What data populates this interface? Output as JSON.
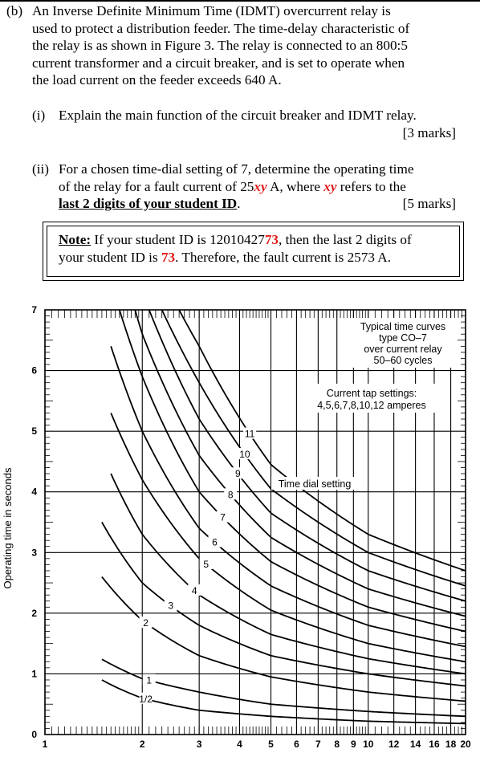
{
  "question": {
    "label": "(b)",
    "lines": [
      "An Inverse Definite Minimum Time (IDMT) overcurrent relay is",
      "used to protect a distribution feeder. The time-delay characteristic of",
      "the relay is as shown in Figure 3. The relay is connected to an 800:5",
      "current transformer and a circuit breaker, and is set to operate when",
      "the load current on the feeder exceeds 640 A."
    ]
  },
  "part_i": {
    "label": "(i)",
    "text": "Explain the main function of the circuit breaker and IDMT relay.",
    "marks": "[3 marks]"
  },
  "part_ii": {
    "label": "(ii)",
    "line1": "For a chosen time-dial setting of 7, determine the operating time",
    "line2_a": "of the relay for a fault current of 25",
    "line2_xy": "xy",
    "line2_b": " A, where ",
    "line2_xy2": "xy",
    "line2_c": " refers to the",
    "line3_bold": "last 2 digits of your student ID",
    "line3_end": ".",
    "marks": "[5 marks]"
  },
  "note": {
    "label": "Note:",
    "line1_a": " If your student ID is 12010427",
    "line1_red": "73",
    "line1_b": ", then the last 2 digits of",
    "line2_a": "your student ID is ",
    "line2_red": "73",
    "line2_b": ". Therefore, the fault current is 2573 A."
  },
  "chart_data": {
    "type": "line",
    "title": "",
    "ylabel": "Operating time in seconds",
    "xlabel": "",
    "xscale": "log",
    "x_ticks": [
      "1",
      "2",
      "3",
      "4",
      "5",
      "6",
      "7",
      "8",
      "9",
      "10",
      "12",
      "14",
      "16",
      "18",
      "20"
    ],
    "y_ticks": [
      "0",
      "1",
      "2",
      "3",
      "4",
      "5",
      "6",
      "7"
    ],
    "xlim": [
      1,
      20
    ],
    "ylim": [
      0,
      7
    ],
    "annotations": {
      "info_box": [
        "Typical time curves",
        "type CO–7",
        "over current relay",
        "50–60 cycles"
      ],
      "tap_box": [
        "Current tap settings:",
        "4,5,6,7,8,10,12 amperes"
      ],
      "dial_label": "Time dial setting"
    },
    "series": [
      {
        "name": "1/2",
        "x": [
          1.5,
          2,
          3,
          5,
          10,
          20
        ],
        "y": [
          0.9,
          0.6,
          0.4,
          0.3,
          0.22,
          0.18
        ]
      },
      {
        "name": "1",
        "x": [
          1.5,
          2,
          3,
          5,
          10,
          20
        ],
        "y": [
          1.24,
          0.92,
          0.7,
          0.5,
          0.38,
          0.3
        ]
      },
      {
        "name": "2",
        "x": [
          1.5,
          2,
          3,
          5,
          10,
          20
        ],
        "y": [
          2.6,
          1.88,
          1.3,
          0.95,
          0.7,
          0.55
        ]
      },
      {
        "name": "3",
        "x": [
          1.5,
          2,
          3,
          5,
          10,
          20
        ],
        "y": [
          3.5,
          2.5,
          1.8,
          1.3,
          1.0,
          0.8
        ]
      },
      {
        "name": "4",
        "x": [
          1.6,
          2,
          3,
          5,
          10,
          20
        ],
        "y": [
          4.3,
          3.3,
          2.3,
          1.65,
          1.25,
          1.0
        ]
      },
      {
        "name": "5",
        "x": [
          1.6,
          2,
          3,
          5,
          10,
          20
        ],
        "y": [
          5.3,
          4.2,
          2.9,
          2.05,
          1.5,
          1.2
        ]
      },
      {
        "name": "6",
        "x": [
          1.6,
          2,
          3,
          5,
          10,
          20
        ],
        "y": [
          6.4,
          5.0,
          3.4,
          2.45,
          1.8,
          1.45
        ]
      },
      {
        "name": "7",
        "x": [
          1.7,
          2,
          3,
          5,
          10,
          20
        ],
        "y": [
          7.0,
          5.9,
          4.0,
          2.85,
          2.1,
          1.7
        ]
      },
      {
        "name": "8",
        "x": [
          1.9,
          2,
          3,
          5,
          10,
          20
        ],
        "y": [
          7.0,
          6.6,
          4.6,
          3.25,
          2.4,
          1.95
        ]
      },
      {
        "name": "9",
        "x": [
          2.1,
          3,
          5,
          10,
          20
        ],
        "y": [
          7.0,
          5.2,
          3.65,
          2.7,
          2.2
        ]
      },
      {
        "name": "10",
        "x": [
          2.3,
          3,
          5,
          10,
          20
        ],
        "y": [
          7.0,
          5.8,
          4.05,
          3.0,
          2.45
        ]
      },
      {
        "name": "11",
        "x": [
          2.6,
          3,
          5,
          10,
          20
        ],
        "y": [
          7.0,
          6.4,
          4.45,
          3.3,
          2.7
        ]
      }
    ]
  }
}
